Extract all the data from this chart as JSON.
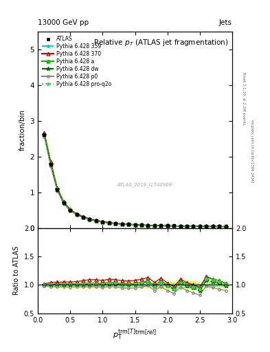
{
  "title": "Relative $p_{T}$ (ATLAS jet fragmentation)",
  "top_left_label": "13000 GeV pp",
  "top_right_label": "Jets",
  "ylabel_main": "fraction/bin",
  "ylabel_ratio": "Ratio to ATLAS",
  "xlabel": "$p_{\\mathrm{T}}^{\\mathrm{trm}[T]}{}^{\\mathrm{trm}[rel]}$",
  "watermark": "ATLAS_2019_I1740909",
  "rivet_label": "Rivet 3.1.10, ≥ 2.2M events",
  "mcplots_label": "mcplots.cern.ch [arXiv:1306.3436]",
  "xlim": [
    0,
    3
  ],
  "ylim_main": [
    0,
    5.5
  ],
  "ylim_ratio": [
    0.5,
    2.0
  ],
  "yticks_main": [
    0,
    1,
    2,
    3,
    4,
    5
  ],
  "yticks_ratio": [
    0.5,
    1.0,
    1.5,
    2.0
  ],
  "x_data": [
    0.1,
    0.2,
    0.3,
    0.4,
    0.5,
    0.6,
    0.7,
    0.8,
    0.9,
    1.0,
    1.1,
    1.2,
    1.3,
    1.4,
    1.5,
    1.6,
    1.7,
    1.8,
    1.9,
    2.0,
    2.1,
    2.2,
    2.3,
    2.4,
    2.5,
    2.6,
    2.7,
    2.8,
    2.9
  ],
  "atlas_y": [
    2.62,
    1.78,
    1.08,
    0.7,
    0.5,
    0.38,
    0.3,
    0.24,
    0.2,
    0.17,
    0.14,
    0.12,
    0.11,
    0.1,
    0.09,
    0.08,
    0.07,
    0.07,
    0.06,
    0.06,
    0.06,
    0.05,
    0.05,
    0.05,
    0.05,
    0.04,
    0.04,
    0.04,
    0.04
  ],
  "atlas_yerr": [
    0.04,
    0.03,
    0.02,
    0.015,
    0.01,
    0.008,
    0.007,
    0.006,
    0.005,
    0.004,
    0.004,
    0.003,
    0.003,
    0.003,
    0.002,
    0.002,
    0.002,
    0.002,
    0.002,
    0.002,
    0.002,
    0.002,
    0.002,
    0.002,
    0.001,
    0.001,
    0.001,
    0.001,
    0.001
  ],
  "p359_y": [
    2.63,
    1.8,
    1.09,
    0.71,
    0.505,
    0.385,
    0.305,
    0.245,
    0.204,
    0.173,
    0.145,
    0.124,
    0.111,
    0.101,
    0.091,
    0.083,
    0.074,
    0.068,
    0.063,
    0.059,
    0.055,
    0.052,
    0.05,
    0.048,
    0.046,
    0.044,
    0.043,
    0.042,
    0.04
  ],
  "p370_y": [
    2.66,
    1.86,
    1.13,
    0.735,
    0.525,
    0.402,
    0.322,
    0.262,
    0.218,
    0.183,
    0.154,
    0.131,
    0.118,
    0.107,
    0.097,
    0.088,
    0.079,
    0.073,
    0.067,
    0.062,
    0.058,
    0.055,
    0.052,
    0.05,
    0.048,
    0.046,
    0.044,
    0.043,
    0.041
  ],
  "pa_y": [
    2.64,
    1.81,
    1.1,
    0.715,
    0.508,
    0.388,
    0.307,
    0.247,
    0.206,
    0.174,
    0.146,
    0.125,
    0.112,
    0.102,
    0.092,
    0.084,
    0.075,
    0.069,
    0.064,
    0.06,
    0.056,
    0.053,
    0.051,
    0.049,
    0.047,
    0.045,
    0.044,
    0.043,
    0.041
  ],
  "pdw_y": [
    2.62,
    1.79,
    1.085,
    0.705,
    0.502,
    0.382,
    0.302,
    0.242,
    0.202,
    0.17,
    0.143,
    0.122,
    0.11,
    0.1,
    0.09,
    0.082,
    0.074,
    0.068,
    0.063,
    0.059,
    0.055,
    0.052,
    0.049,
    0.047,
    0.045,
    0.043,
    0.042,
    0.041,
    0.039
  ],
  "pp0_y": [
    2.56,
    1.72,
    1.04,
    0.675,
    0.48,
    0.367,
    0.289,
    0.232,
    0.193,
    0.162,
    0.136,
    0.116,
    0.104,
    0.094,
    0.085,
    0.077,
    0.069,
    0.063,
    0.058,
    0.054,
    0.051,
    0.048,
    0.045,
    0.043,
    0.041,
    0.039,
    0.038,
    0.037,
    0.036
  ],
  "pproq2o_y": [
    2.63,
    1.8,
    1.09,
    0.71,
    0.505,
    0.385,
    0.305,
    0.245,
    0.204,
    0.172,
    0.144,
    0.123,
    0.111,
    0.101,
    0.091,
    0.083,
    0.074,
    0.068,
    0.063,
    0.059,
    0.055,
    0.052,
    0.05,
    0.048,
    0.046,
    0.044,
    0.043,
    0.042,
    0.04
  ],
  "atlas_color": "#000000",
  "p359_color": "#00cccc",
  "p370_color": "#cc0000",
  "pa_color": "#00bb00",
  "pdw_color": "#006600",
  "pp0_color": "#888888",
  "pproq2o_color": "#44cc44",
  "band_color_green": "#90ee90",
  "band_color_yellow": "#ffff80",
  "legend_entries": [
    "ATLAS",
    "Pythia 6.428 359",
    "Pythia 6.428 370",
    "Pythia 6.428 a",
    "Pythia 6.428 dw",
    "Pythia 6.428 p0",
    "Pythia 6.428 pro-q2o"
  ]
}
